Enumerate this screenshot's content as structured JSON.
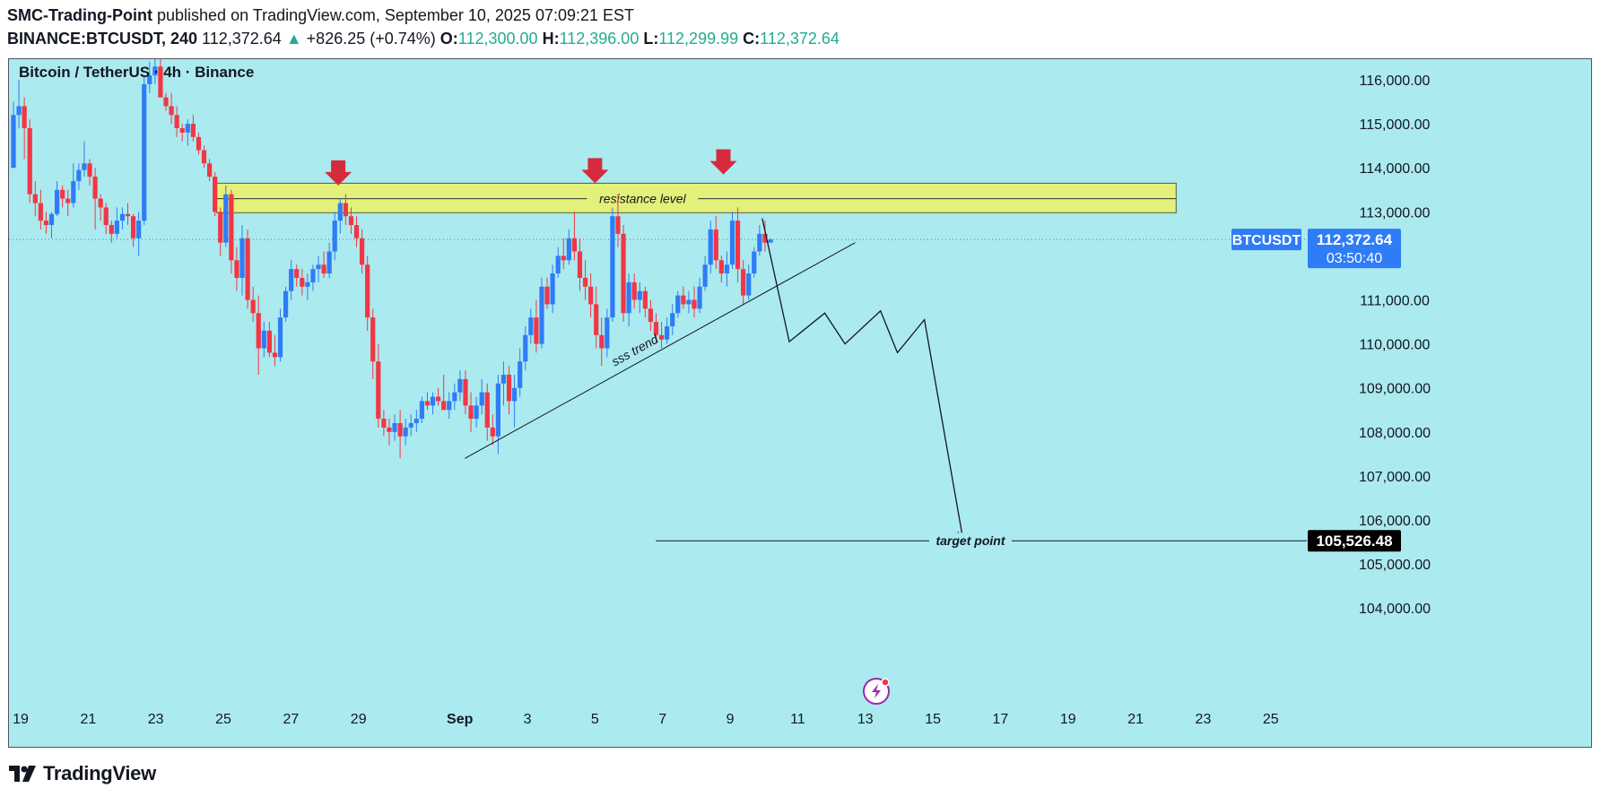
{
  "header": {
    "author": "SMC-Trading-Point",
    "published_text": "published on TradingView.com, September 10, 2025 07:09:21 EST",
    "symbol_tf": "BINANCE:BTCUSDT, 240",
    "last": "112,372.64",
    "change_arrow": "▲",
    "change": "+826.25 (+0.74%)",
    "o_label": "O:",
    "o": "112,300.00",
    "h_label": "H:",
    "h": "112,396.00",
    "l_label": "L:",
    "l": "112,299.99",
    "c_label": "C:",
    "c": "112,372.64"
  },
  "chart_title": "Bitcoin / TetherUS · 4h · Binance",
  "footer": {
    "brand": "TradingView"
  },
  "colors": {
    "background": "#abeaee",
    "up": "#2f7cf6",
    "down": "#f23645",
    "zone": "#e3f07a",
    "arrow": "#d62b3d",
    "price_badge": "#2f7cf6",
    "target_badge": "#000000"
  },
  "chart_data": {
    "type": "candlestick",
    "y_ticks": [
      "116,000.00",
      "115,000.00",
      "114,000.00",
      "113,000.00",
      "111,000.00",
      "110,000.00",
      "109,000.00",
      "108,000.00",
      "107,000.00",
      "106,000.00",
      "105,000.00",
      "104,000.00"
    ],
    "y_tick_values": [
      116000,
      115000,
      114000,
      113000,
      111000,
      110000,
      109000,
      108000,
      107000,
      106000,
      105000,
      104000
    ],
    "ylim": [
      103300,
      116700
    ],
    "x_ticks": [
      "19",
      "21",
      "23",
      "25",
      "27",
      "29",
      "Sep",
      "3",
      "5",
      "7",
      "9",
      "11",
      "13",
      "15",
      "17",
      "19",
      "21",
      "23",
      "25"
    ],
    "x_tick_days": [
      0,
      2,
      4,
      6,
      8,
      10,
      13,
      15,
      17,
      19,
      21,
      23,
      25,
      27,
      29,
      31,
      33,
      35,
      37
    ],
    "xlim_days": [
      -0.3,
      38.6
    ],
    "current_price": {
      "symbol": "BTCUSDT",
      "value": 112372.64,
      "label": "112,372.64",
      "countdown": "03:50:40"
    },
    "target": {
      "label": "target point",
      "value": 105526.48,
      "value_label": "105,526.48",
      "x_start_day": 18.8
    },
    "resistance": {
      "label": "resistance level",
      "y_top": 113650,
      "y_bottom": 112980,
      "y_mid": 113300,
      "x_start_day": 5.8,
      "x_end_day": 34.2
    },
    "trendline": {
      "label": "sss trend",
      "start": {
        "day": 13.15,
        "price": 107400
      },
      "end": {
        "day": 24.7,
        "price": 112300
      }
    },
    "arrows": [
      {
        "day": 9.4,
        "price": 113600
      },
      {
        "day": 17.0,
        "price": 113650
      },
      {
        "day": 20.8,
        "price": 113850
      }
    ],
    "projection": [
      {
        "day": 21.95,
        "price": 112850
      },
      {
        "day": 22.75,
        "price": 110050
      },
      {
        "day": 23.8,
        "price": 110700
      },
      {
        "day": 24.4,
        "price": 110000
      },
      {
        "day": 25.45,
        "price": 110750
      },
      {
        "day": 25.95,
        "price": 109800
      },
      {
        "day": 26.75,
        "price": 110550
      },
      {
        "day": 27.9,
        "price": 105526
      }
    ],
    "candles_ohlc": [
      [
        114000,
        115500,
        114700,
        115200
      ],
      [
        115200,
        116000,
        114900,
        115400
      ],
      [
        115400,
        115600,
        114200,
        114900
      ],
      [
        114900,
        115100,
        113200,
        113400
      ],
      [
        113400,
        113700,
        112900,
        113200
      ],
      [
        113200,
        113500,
        112600,
        112800
      ],
      [
        112800,
        113000,
        112500,
        112700
      ],
      [
        112700,
        113000,
        112400,
        112950
      ],
      [
        112950,
        113700,
        112900,
        113500
      ],
      [
        113500,
        113600,
        113100,
        113300
      ],
      [
        113300,
        113500,
        112900,
        113200
      ],
      [
        113200,
        114100,
        113100,
        113700
      ],
      [
        113700,
        114100,
        113500,
        113950
      ],
      [
        113950,
        114600,
        113800,
        114100
      ],
      [
        114100,
        114200,
        113600,
        113800
      ],
      [
        113800,
        114000,
        112600,
        113300
      ],
      [
        113300,
        113400,
        112800,
        113100
      ],
      [
        113100,
        113200,
        112500,
        112700
      ],
      [
        112700,
        112800,
        112300,
        112500
      ],
      [
        112500,
        113100,
        112400,
        112800
      ],
      [
        112800,
        113100,
        112600,
        112950
      ],
      [
        112950,
        113200,
        112700,
        112900
      ],
      [
        112900,
        112950,
        112200,
        112400
      ],
      [
        112400,
        113000,
        112000,
        112800
      ],
      [
        112800,
        116100,
        112700,
        115900
      ],
      [
        115900,
        116400,
        115700,
        116100
      ],
      [
        116100,
        116500,
        115900,
        116300
      ],
      [
        116300,
        116700,
        115800,
        115600
      ],
      [
        115600,
        115700,
        115300,
        115400
      ],
      [
        115400,
        115700,
        115000,
        115200
      ],
      [
        115200,
        115400,
        114700,
        114900
      ],
      [
        114900,
        115000,
        114600,
        114800
      ],
      [
        114800,
        115100,
        114500,
        115000
      ],
      [
        115000,
        115200,
        114600,
        114700
      ],
      [
        114700,
        114800,
        114300,
        114400
      ],
      [
        114400,
        114500,
        114000,
        114100
      ],
      [
        114100,
        114200,
        113700,
        113800
      ],
      [
        113800,
        113900,
        112900,
        113000
      ],
      [
        113000,
        113100,
        112000,
        112300
      ],
      [
        112300,
        113600,
        112200,
        113400
      ],
      [
        113400,
        113500,
        111600,
        111900
      ],
      [
        111900,
        112200,
        111200,
        111500
      ],
      [
        111500,
        112700,
        111100,
        112400
      ],
      [
        112400,
        112600,
        110800,
        111000
      ],
      [
        111000,
        111300,
        110500,
        110700
      ],
      [
        110700,
        111100,
        109300,
        109900
      ],
      [
        109900,
        110500,
        109700,
        110300
      ],
      [
        110300,
        110500,
        109700,
        109800
      ],
      [
        109800,
        110200,
        109500,
        109700
      ],
      [
        109700,
        110800,
        109600,
        110600
      ],
      [
        110600,
        111300,
        110500,
        111200
      ],
      [
        111200,
        111900,
        111000,
        111700
      ],
      [
        111700,
        111800,
        111300,
        111500
      ],
      [
        111500,
        111700,
        111100,
        111300
      ],
      [
        111300,
        111600,
        111000,
        111400
      ],
      [
        111400,
        111800,
        111200,
        111700
      ],
      [
        111700,
        112000,
        111400,
        111800
      ],
      [
        111800,
        112100,
        111500,
        111600
      ],
      [
        111600,
        112300,
        111500,
        112100
      ],
      [
        112100,
        113000,
        111900,
        112800
      ],
      [
        112800,
        113300,
        112500,
        113200
      ],
      [
        113200,
        113400,
        112700,
        112900
      ],
      [
        112900,
        113100,
        112500,
        112700
      ],
      [
        112700,
        112900,
        112200,
        112400
      ],
      [
        112400,
        112600,
        111600,
        111800
      ],
      [
        111800,
        112000,
        110300,
        110600
      ],
      [
        110600,
        110800,
        109200,
        109600
      ],
      [
        109600,
        110000,
        108100,
        108300
      ],
      [
        108300,
        108500,
        107900,
        108100
      ],
      [
        108100,
        108300,
        107700,
        108000
      ],
      [
        108000,
        108400,
        107800,
        108200
      ],
      [
        108200,
        108500,
        107400,
        107900
      ],
      [
        107900,
        108300,
        107700,
        108100
      ],
      [
        108100,
        108400,
        107900,
        108200
      ],
      [
        108200,
        108500,
        108000,
        108300
      ],
      [
        108300,
        108800,
        108200,
        108700
      ],
      [
        108700,
        108900,
        108500,
        108600
      ],
      [
        108600,
        108900,
        108400,
        108800
      ],
      [
        108800,
        109000,
        108600,
        108700
      ],
      [
        108700,
        109300,
        108500,
        108500
      ],
      [
        108500,
        108900,
        108300,
        108700
      ],
      [
        108700,
        109100,
        108500,
        108900
      ],
      [
        108900,
        109400,
        108700,
        109200
      ],
      [
        109200,
        109400,
        108400,
        108600
      ],
      [
        108600,
        108900,
        108000,
        108300
      ],
      [
        108300,
        108800,
        108100,
        108600
      ],
      [
        108600,
        109200,
        108400,
        108900
      ],
      [
        108900,
        109100,
        107800,
        108100
      ],
      [
        108100,
        108400,
        107700,
        107900
      ],
      [
        107900,
        109300,
        107500,
        109100
      ],
      [
        109100,
        109600,
        108600,
        109300
      ],
      [
        109300,
        109500,
        108400,
        108700
      ],
      [
        108700,
        109300,
        108100,
        109000
      ],
      [
        109000,
        109900,
        108800,
        109600
      ],
      [
        109600,
        110400,
        109400,
        110200
      ],
      [
        110200,
        110800,
        110000,
        110600
      ],
      [
        110600,
        111000,
        109800,
        110000
      ],
      [
        110000,
        111500,
        109900,
        111300
      ],
      [
        111300,
        111500,
        110800,
        110900
      ],
      [
        110900,
        111800,
        110700,
        111600
      ],
      [
        111600,
        112200,
        111500,
        112000
      ],
      [
        112000,
        112400,
        111700,
        111900
      ],
      [
        111900,
        112600,
        111800,
        112400
      ],
      [
        112400,
        113000,
        111900,
        112100
      ],
      [
        112100,
        112400,
        111200,
        111500
      ],
      [
        111500,
        111900,
        111000,
        111300
      ],
      [
        111300,
        111600,
        110600,
        110900
      ],
      [
        110900,
        111300,
        109900,
        110200
      ],
      [
        110200,
        110600,
        109500,
        109900
      ],
      [
        109900,
        110800,
        109700,
        110600
      ],
      [
        110600,
        113100,
        110500,
        112900
      ],
      [
        112900,
        113400,
        112200,
        112500
      ],
      [
        112500,
        112700,
        110500,
        110700
      ],
      [
        110700,
        111600,
        110400,
        111400
      ],
      [
        111400,
        111600,
        110800,
        111000
      ],
      [
        111000,
        111400,
        110700,
        111200
      ],
      [
        111200,
        111300,
        110600,
        110800
      ],
      [
        110800,
        111000,
        110300,
        110500
      ],
      [
        110500,
        110700,
        110000,
        110200
      ],
      [
        110200,
        110500,
        109900,
        110100
      ],
      [
        110100,
        110600,
        110000,
        110400
      ],
      [
        110400,
        110900,
        110200,
        110700
      ],
      [
        110700,
        111200,
        110600,
        111100
      ],
      [
        111100,
        111300,
        110800,
        110900
      ],
      [
        110900,
        111200,
        110700,
        111000
      ],
      [
        111000,
        111300,
        110600,
        110800
      ],
      [
        110800,
        111500,
        110700,
        111300
      ],
      [
        111300,
        112000,
        111200,
        111800
      ],
      [
        111800,
        112800,
        111600,
        112600
      ],
      [
        112600,
        112900,
        111700,
        111900
      ],
      [
        111900,
        112000,
        111400,
        111600
      ],
      [
        111600,
        112100,
        111300,
        111800
      ],
      [
        111800,
        113000,
        111700,
        112800
      ],
      [
        112800,
        113100,
        111400,
        111700
      ],
      [
        111700,
        111900,
        110900,
        111100
      ],
      [
        111100,
        111800,
        111000,
        111600
      ],
      [
        111600,
        112200,
        111500,
        112100
      ],
      [
        112100,
        112700,
        112000,
        112500
      ],
      [
        112500,
        112800,
        112100,
        112300
      ],
      [
        112300,
        112400,
        112300,
        112372
      ]
    ]
  }
}
